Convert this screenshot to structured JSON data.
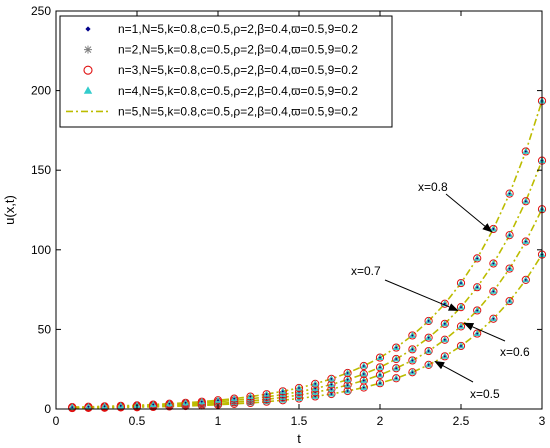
{
  "chart_data": {
    "type": "line",
    "xlabel": "t",
    "ylabel": "u(x,t)",
    "xlim": [
      0,
      3
    ],
    "ylim": [
      0,
      250
    ],
    "xticks": [
      0,
      0.5,
      1,
      1.5,
      2,
      2.5,
      3
    ],
    "xtick_labels": [
      "0",
      "0.5",
      "1",
      "1.5",
      "2",
      "2.5",
      "3"
    ],
    "yticks": [
      0,
      50,
      100,
      150,
      200,
      250
    ],
    "ytick_labels": [
      "0",
      "50",
      "100",
      "150",
      "200",
      "250"
    ],
    "grid": false,
    "legend_position": "top-left",
    "legend": [
      {
        "label": "n=1,N=5,k=0.8,c=0.5,ρ=2,β=0.4,ϖ=0.5,9=0.2",
        "marker": "dot",
        "color": "#00008b"
      },
      {
        "label": "n=2,N=5,k=0.8,c=0.5,ρ=2,β=0.4,ϖ=0.5,9=0.2",
        "marker": "asterisk",
        "color": "#7f7f7f"
      },
      {
        "label": "n=3,N=5,k=0.8,c=0.5,ρ=2,β=0.4,ϖ=0.5,9=0.2",
        "marker": "circle",
        "color": "#e01010"
      },
      {
        "label": "n=4,N=5,k=0.8,c=0.5,ρ=2,β=0.4,ϖ=0.5,9=0.2",
        "marker": "triangle",
        "color": "#33cccc"
      },
      {
        "label": "n=5,N=5,k=0.8,c=0.5,ρ=2,β=0.4,ϖ=0.5,9=0.2",
        "marker": "dashdot-line",
        "color": "#bcbc00"
      }
    ],
    "t": [
      0.1,
      0.2,
      0.3,
      0.4,
      0.5,
      0.6,
      0.7,
      0.8,
      0.9,
      1.0,
      1.1,
      1.2,
      1.3,
      1.4,
      1.5,
      1.6,
      1.7,
      1.8,
      1.9,
      2.0,
      2.1,
      2.2,
      2.3,
      2.4,
      2.5,
      2.6,
      2.7,
      2.8,
      2.9,
      3.0
    ],
    "series": [
      {
        "x_value": "x=0.5",
        "values": [
          0.6,
          0.7,
          0.8,
          1.0,
          1.1,
          1.3,
          1.6,
          1.9,
          2.2,
          2.7,
          3.2,
          3.8,
          4.6,
          5.5,
          6.6,
          7.9,
          9.4,
          11.3,
          13.5,
          16.2,
          19.3,
          23.1,
          27.7,
          33.1,
          39.6,
          47.4,
          56.7,
          67.8,
          81.1,
          97.0
        ]
      },
      {
        "x_value": "x=0.6",
        "values": [
          0.8,
          0.9,
          1.0,
          1.2,
          1.5,
          1.7,
          2.1,
          2.5,
          2.9,
          3.5,
          4.2,
          5.1,
          6.1,
          7.3,
          8.8,
          10.5,
          12.5,
          15.0,
          17.9,
          21.4,
          25.6,
          30.5,
          36.4,
          43.5,
          51.9,
          61.9,
          73.9,
          88.2,
          105.2,
          125.5
        ]
      },
      {
        "x_value": "x=0.7",
        "values": [
          1.0,
          1.2,
          1.4,
          1.6,
          1.9,
          2.2,
          2.7,
          3.2,
          3.8,
          4.5,
          5.4,
          6.4,
          7.6,
          9.1,
          10.8,
          12.9,
          15.4,
          18.4,
          22.0,
          26.2,
          31.4,
          37.5,
          44.8,
          53.5,
          64.0,
          76.5,
          91.4,
          109.2,
          130.5,
          156.0
        ]
      },
      {
        "x_value": "x=0.8",
        "values": [
          1.2,
          1.4,
          1.7,
          2.0,
          2.3,
          2.8,
          3.3,
          3.9,
          4.6,
          5.5,
          6.5,
          7.8,
          9.3,
          11.1,
          13.2,
          15.8,
          18.9,
          22.6,
          27.0,
          32.3,
          38.6,
          46.2,
          55.3,
          66.1,
          79.1,
          94.6,
          113.1,
          135.3,
          161.8,
          193.5
        ]
      }
    ],
    "annotations": [
      {
        "text": "x=0.8",
        "target_series": 3
      },
      {
        "text": "x=0.7",
        "target_series": 2
      },
      {
        "text": "x=0.6",
        "target_series": 1
      },
      {
        "text": "x=0.5",
        "target_series": 0
      }
    ]
  }
}
